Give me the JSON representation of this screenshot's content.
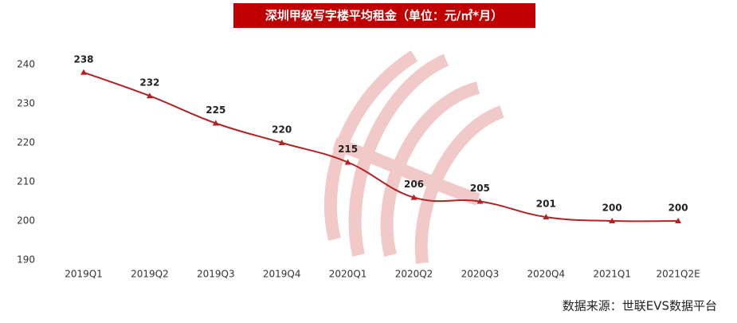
{
  "chart_data": {
    "type": "line",
    "title": "深圳甲级写字楼平均租金（单位：元/㎡*月）",
    "source": "数据来源：世联EVS数据平台",
    "categories": [
      "2019Q1",
      "2019Q2",
      "2019Q3",
      "2019Q4",
      "2020Q1",
      "2020Q2",
      "2020Q3",
      "2020Q4",
      "2021Q1",
      "2021Q2E"
    ],
    "series": [
      {
        "name": "平均租金",
        "color": "#b22222",
        "values": [
          238,
          232,
          225,
          220,
          215,
          206,
          205,
          201,
          200,
          200
        ]
      }
    ],
    "ylim": [
      190,
      240
    ],
    "yticks": [
      190,
      200,
      210,
      220,
      230,
      240
    ],
    "grid": false
  }
}
